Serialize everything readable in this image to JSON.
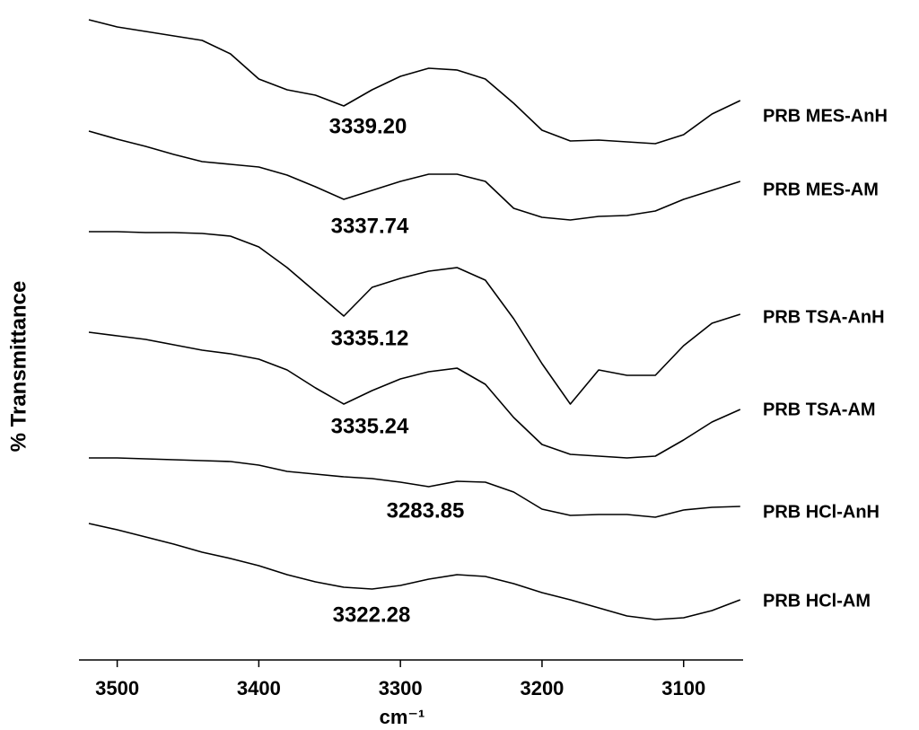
{
  "chart_data": {
    "type": "line",
    "xlabel": "cm⁻¹",
    "ylabel": "% Transmittance",
    "x": [
      3520,
      3500,
      3480,
      3460,
      3440,
      3420,
      3400,
      3380,
      3360,
      3340,
      3320,
      3300,
      3280,
      3260,
      3240,
      3220,
      3200,
      3180,
      3160,
      3140,
      3120,
      3100,
      3080,
      3060
    ],
    "xlim": [
      3527,
      3058
    ],
    "xticks": [
      3500,
      3400,
      3300,
      3200,
      3100
    ],
    "ylim": [
      0,
      72.5
    ],
    "series": [
      {
        "name": "PRB MES-AnH",
        "color": "#000000",
        "values": [
          71.3,
          70.5,
          70.0,
          69.5,
          69.0,
          67.5,
          64.7,
          63.5,
          62.9,
          61.7,
          63.5,
          65.0,
          65.9,
          65.7,
          64.7,
          62.0,
          59.0,
          57.8,
          57.9,
          57.7,
          57.5,
          58.5,
          60.8,
          62.3
        ]
      },
      {
        "name": "PRB MES-AM",
        "color": "#000000",
        "values": [
          58.9,
          58.0,
          57.2,
          56.3,
          55.5,
          55.2,
          54.9,
          54.0,
          52.7,
          51.3,
          52.3,
          53.3,
          54.1,
          54.1,
          53.3,
          50.3,
          49.3,
          49.0,
          49.4,
          49.5,
          50.0,
          51.3,
          52.3,
          53.3
        ]
      },
      {
        "name": "PRB TSA-AnH",
        "color": "#000000",
        "values": [
          47.7,
          47.7,
          47.6,
          47.6,
          47.5,
          47.2,
          46.0,
          43.7,
          41.0,
          38.3,
          41.5,
          42.5,
          43.3,
          43.7,
          42.3,
          38.0,
          33.0,
          28.5,
          32.3,
          31.7,
          31.7,
          35.0,
          37.5,
          38.5
        ]
      },
      {
        "name": "PRB TSA-AM",
        "color": "#000000",
        "values": [
          36.5,
          36.1,
          35.7,
          35.1,
          34.5,
          34.1,
          33.5,
          32.3,
          30.3,
          28.5,
          30.0,
          31.3,
          32.1,
          32.5,
          30.7,
          27.0,
          24.0,
          22.9,
          22.7,
          22.5,
          22.7,
          24.5,
          26.5,
          27.9
        ]
      },
      {
        "name": "PRB HCl-AnH",
        "color": "#000000",
        "values": [
          22.5,
          22.5,
          22.4,
          22.3,
          22.2,
          22.1,
          21.7,
          21.0,
          20.7,
          20.4,
          20.2,
          19.8,
          19.3,
          19.9,
          19.8,
          18.7,
          16.8,
          16.1,
          16.2,
          16.2,
          15.9,
          16.7,
          17.0,
          17.1
        ]
      },
      {
        "name": "PRB HCl-AM",
        "color": "#000000",
        "values": [
          15.2,
          14.5,
          13.7,
          12.9,
          12.0,
          11.3,
          10.5,
          9.5,
          8.7,
          8.1,
          7.9,
          8.3,
          9.0,
          9.5,
          9.3,
          8.5,
          7.5,
          6.7,
          5.8,
          4.9,
          4.5,
          4.7,
          5.5,
          6.7
        ]
      }
    ],
    "annotations": [
      "3339.20",
      "3337.74",
      "3335.12",
      "3335.24",
      "3283.85",
      "3322.28"
    ]
  }
}
